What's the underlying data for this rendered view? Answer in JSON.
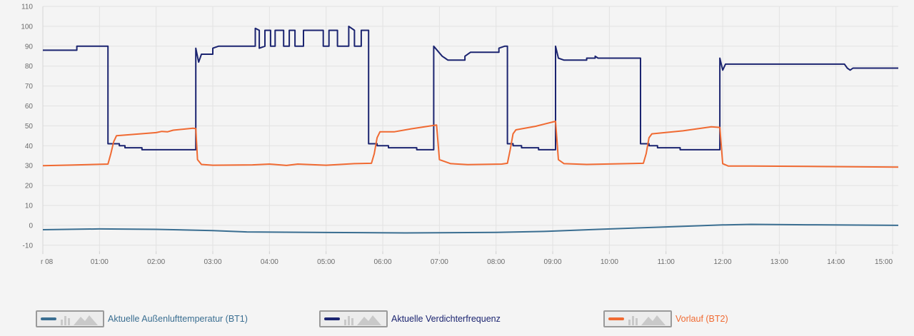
{
  "chart_data": {
    "type": "line",
    "y_ticks": [
      "110",
      "100",
      "90",
      "80",
      "70",
      "60",
      "50",
      "40",
      "30",
      "20",
      "10",
      "0",
      "-10"
    ],
    "ylim": [
      -13,
      110
    ],
    "x_ticks": [
      "r 08",
      "01:00",
      "02:00",
      "03:00",
      "04:00",
      "05:00",
      "06:00",
      "07:00",
      "08:00",
      "09:00",
      "10:00",
      "11:00",
      "12:00",
      "13:00",
      "14:00",
      "15:00"
    ],
    "x_unit": "hours",
    "xlim": [
      0,
      15.1
    ],
    "grid": true,
    "legend_position": "bottom",
    "series": [
      {
        "name": "Aktuelle Außenlufttemperatur (BT1)",
        "color": "#3a6e91",
        "step": false,
        "points": [
          [
            0,
            -2.2
          ],
          [
            1,
            -1.8
          ],
          [
            2,
            -2
          ],
          [
            3,
            -2.6
          ],
          [
            3.6,
            -3.3
          ],
          [
            5,
            -3.6
          ],
          [
            6.4,
            -3.8
          ],
          [
            8,
            -3.5
          ],
          [
            8.9,
            -3
          ],
          [
            9.8,
            -2
          ],
          [
            11,
            -0.8
          ],
          [
            12,
            0.2
          ],
          [
            12.5,
            0.5
          ],
          [
            13.5,
            0.3
          ],
          [
            15.1,
            0
          ]
        ]
      },
      {
        "name": "Aktuelle Verdichterfrequenz",
        "color": "#1b2470",
        "step": true,
        "points": [
          [
            0,
            88
          ],
          [
            0.6,
            88
          ],
          [
            0.6,
            90
          ],
          [
            1.15,
            90
          ],
          [
            1.15,
            41
          ],
          [
            1.35,
            41
          ],
          [
            1.35,
            40
          ],
          [
            1.45,
            40
          ],
          [
            1.45,
            39
          ],
          [
            1.75,
            39
          ],
          [
            1.75,
            38
          ],
          [
            2.7,
            38
          ],
          [
            2.7,
            89
          ],
          [
            2.75,
            82
          ],
          [
            2.8,
            86
          ],
          [
            3,
            86
          ],
          [
            3,
            89
          ],
          [
            3.1,
            90
          ],
          [
            3.75,
            90
          ],
          [
            3.75,
            99
          ],
          [
            3.82,
            98
          ],
          [
            3.82,
            89
          ],
          [
            3.92,
            90
          ],
          [
            3.92,
            98
          ],
          [
            4.02,
            98
          ],
          [
            4.02,
            90
          ],
          [
            4.1,
            90
          ],
          [
            4.1,
            98
          ],
          [
            4.25,
            98
          ],
          [
            4.25,
            90
          ],
          [
            4.35,
            90
          ],
          [
            4.35,
            98
          ],
          [
            4.45,
            98
          ],
          [
            4.45,
            90
          ],
          [
            4.6,
            90
          ],
          [
            4.6,
            98
          ],
          [
            4.95,
            98
          ],
          [
            4.95,
            90
          ],
          [
            5.05,
            90
          ],
          [
            5.05,
            98
          ],
          [
            5.2,
            98
          ],
          [
            5.2,
            90
          ],
          [
            5.4,
            90
          ],
          [
            5.4,
            100
          ],
          [
            5.5,
            98
          ],
          [
            5.5,
            90
          ],
          [
            5.62,
            90
          ],
          [
            5.62,
            98
          ],
          [
            5.75,
            98
          ],
          [
            5.75,
            41
          ],
          [
            5.9,
            41
          ],
          [
            5.9,
            40
          ],
          [
            6.1,
            40
          ],
          [
            6.1,
            39
          ],
          [
            6.6,
            39
          ],
          [
            6.6,
            38
          ],
          [
            6.9,
            38
          ],
          [
            6.9,
            90
          ],
          [
            7.05,
            85
          ],
          [
            7.1,
            84
          ],
          [
            7.15,
            83
          ],
          [
            7.45,
            83
          ],
          [
            7.45,
            85
          ],
          [
            7.55,
            87
          ],
          [
            7.6,
            87
          ],
          [
            8.05,
            87
          ],
          [
            8.05,
            89
          ],
          [
            8.15,
            90
          ],
          [
            8.2,
            90
          ],
          [
            8.2,
            41
          ],
          [
            8.3,
            41
          ],
          [
            8.3,
            40
          ],
          [
            8.45,
            40
          ],
          [
            8.45,
            39
          ],
          [
            8.75,
            39
          ],
          [
            8.75,
            38
          ],
          [
            9.05,
            38
          ],
          [
            9.05,
            90
          ],
          [
            9.1,
            84
          ],
          [
            9.2,
            83
          ],
          [
            9.6,
            83
          ],
          [
            9.6,
            84
          ],
          [
            9.75,
            84
          ],
          [
            9.75,
            85
          ],
          [
            9.8,
            84
          ],
          [
            10.55,
            84
          ],
          [
            10.55,
            41
          ],
          [
            10.7,
            41
          ],
          [
            10.7,
            40
          ],
          [
            10.85,
            40
          ],
          [
            10.85,
            39
          ],
          [
            11.25,
            39
          ],
          [
            11.25,
            38
          ],
          [
            11.95,
            38
          ],
          [
            11.95,
            84
          ],
          [
            12,
            78
          ],
          [
            12.05,
            81
          ],
          [
            14.15,
            81
          ],
          [
            14.2,
            79
          ],
          [
            14.25,
            78
          ],
          [
            14.3,
            79
          ],
          [
            15.1,
            79
          ]
        ]
      },
      {
        "name": "Vorlauf (BT2)",
        "color": "#f06a32",
        "step": false,
        "points": [
          [
            0,
            30
          ],
          [
            0.5,
            30.3
          ],
          [
            1.15,
            30.8
          ],
          [
            1.2,
            36
          ],
          [
            1.25,
            42
          ],
          [
            1.3,
            45
          ],
          [
            1.5,
            45.5
          ],
          [
            2,
            46.6
          ],
          [
            2.1,
            47.2
          ],
          [
            2.2,
            47
          ],
          [
            2.3,
            47.8
          ],
          [
            2.65,
            48.8
          ],
          [
            2.7,
            48.6
          ],
          [
            2.73,
            33
          ],
          [
            2.8,
            30.6
          ],
          [
            3,
            30.2
          ],
          [
            3.7,
            30.4
          ],
          [
            4,
            30.8
          ],
          [
            4.3,
            30.1
          ],
          [
            4.5,
            30.8
          ],
          [
            5,
            30.2
          ],
          [
            5.5,
            31
          ],
          [
            5.8,
            31.2
          ],
          [
            5.85,
            36
          ],
          [
            5.9,
            44
          ],
          [
            5.95,
            47
          ],
          [
            6.2,
            47
          ],
          [
            6.5,
            48.5
          ],
          [
            6.85,
            50
          ],
          [
            6.95,
            50.4
          ],
          [
            7,
            33
          ],
          [
            7.2,
            31
          ],
          [
            7.5,
            30.5
          ],
          [
            8.1,
            30.8
          ],
          [
            8.2,
            31.2
          ],
          [
            8.25,
            38
          ],
          [
            8.3,
            46
          ],
          [
            8.35,
            48
          ],
          [
            8.7,
            49.8
          ],
          [
            9.05,
            52.3
          ],
          [
            9.1,
            33
          ],
          [
            9.2,
            31
          ],
          [
            9.6,
            30.6
          ],
          [
            10.6,
            31.2
          ],
          [
            10.65,
            36
          ],
          [
            10.7,
            44
          ],
          [
            10.75,
            46
          ],
          [
            11.3,
            47.5
          ],
          [
            11.8,
            49.5
          ],
          [
            11.95,
            49.2
          ],
          [
            12,
            31
          ],
          [
            12.1,
            29.8
          ],
          [
            12.5,
            29.8
          ],
          [
            13.5,
            29.6
          ],
          [
            15.1,
            29.3
          ]
        ]
      }
    ]
  },
  "legend": [
    {
      "label": "Aktuelle Außenlufttemperatur (BT1)",
      "color": "#3a6e91"
    },
    {
      "label": "Aktuelle Verdichterfrequenz",
      "color": "#1b2470"
    },
    {
      "label": "Vorlauf (BT2)",
      "color": "#f06a32"
    }
  ]
}
